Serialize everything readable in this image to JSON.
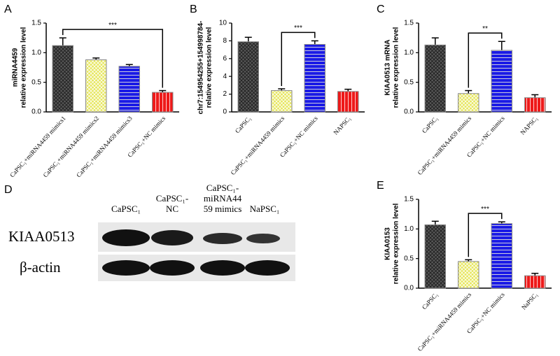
{
  "chart_data": [
    {
      "type": "bar",
      "panel": "A",
      "ylabel": [
        "miRNA4459",
        "relative expression level"
      ],
      "categories": [
        "CaPSC₁+miRNA4459 mimics1",
        "CaPSC₁+miRNA4459 mimics2",
        "CaPSC₁+miRNA4459 mimics3",
        "CaPSC₁+NC mimics"
      ],
      "values": [
        1.12,
        0.88,
        0.77,
        0.33
      ],
      "errors": [
        0.13,
        0.03,
        0.03,
        0.03
      ],
      "colors": [
        "#5a5a5a",
        "#e6e65a",
        "#1a1ae6",
        "#ee1a1a"
      ],
      "ylim": [
        0,
        1.5
      ],
      "yticks": [
        {
          "value": 0,
          "label": "0.0"
        },
        0.5,
        {
          "value": 1,
          "label": "1.0"
        },
        1.5
      ],
      "significance": {
        "between": [
          0,
          3
        ],
        "label": "***"
      }
    },
    {
      "type": "bar",
      "panel": "B",
      "ylabel": [
        "chr7:154954255+154998784-",
        "relative expression level"
      ],
      "categories": [
        "CaPSC₁",
        "CaPSC₁+miRNA4459 mimics",
        "CaPSC₁+NC mimics",
        "NAPSC₁"
      ],
      "values": [
        7.9,
        2.4,
        7.6,
        2.3
      ],
      "errors": [
        0.5,
        0.2,
        0.4,
        0.25
      ],
      "colors": [
        "#5a5a5a",
        "#e6e65a",
        "#1a1ae6",
        "#ee1a1a"
      ],
      "ylim": [
        0,
        10
      ],
      "yticks": [
        0,
        2,
        4,
        6,
        8,
        10
      ],
      "significance": {
        "between": [
          1,
          2
        ],
        "label": "***"
      }
    },
    {
      "type": "bar",
      "panel": "C",
      "ylabel": [
        "KIAA0513 mRNA",
        "relative expression level"
      ],
      "categories": [
        "CaPSC₁",
        "CaPSC₁+miRNA4459 mimics",
        "CaPSC₁+NC mimics",
        "NAPSC₁"
      ],
      "values": [
        1.13,
        0.31,
        1.04,
        0.24
      ],
      "errors": [
        0.12,
        0.05,
        0.15,
        0.05
      ],
      "colors": [
        "#5a5a5a",
        "#e6e65a",
        "#1a1ae6",
        "#ee1a1a"
      ],
      "ylim": [
        0,
        1.5
      ],
      "yticks": [
        {
          "value": 0,
          "label": "0.0"
        },
        0.5,
        {
          "value": 1,
          "label": "1.0"
        },
        1.5
      ],
      "significance": {
        "between": [
          1,
          2
        ],
        "label": "**"
      }
    },
    {
      "type": "bar",
      "panel": "E",
      "ylabel": [
        "KIAA0153",
        "relative expression level"
      ],
      "categories": [
        "CaPSC₁",
        "CaPSC₁+miRNA4459 mimics",
        "CaPSC₁+NC mimics",
        "NaPSC₁"
      ],
      "values": [
        1.07,
        0.45,
        1.09,
        0.21
      ],
      "errors": [
        0.06,
        0.03,
        0.03,
        0.04
      ],
      "colors": [
        "#5a5a5a",
        "#e6e65a",
        "#1a1ae6",
        "#ee1a1a"
      ],
      "ylim": [
        0,
        1.5
      ],
      "yticks": [
        {
          "value": 0,
          "label": "0.0"
        },
        0.5,
        {
          "value": 1,
          "label": "1.0"
        },
        1.5
      ],
      "significance": {
        "between": [
          1,
          2
        ],
        "label": "***"
      }
    }
  ],
  "blot": {
    "panel": "D",
    "lanes": [
      [
        "CaPSC₁"
      ],
      [
        "CaPSC₁-",
        "NC"
      ],
      [
        "CaPSC₁-",
        "miRNA44",
        "59 mimics"
      ],
      [
        "NaPSC₁"
      ]
    ],
    "rows": [
      "KIAA0513",
      "β-actin"
    ]
  }
}
